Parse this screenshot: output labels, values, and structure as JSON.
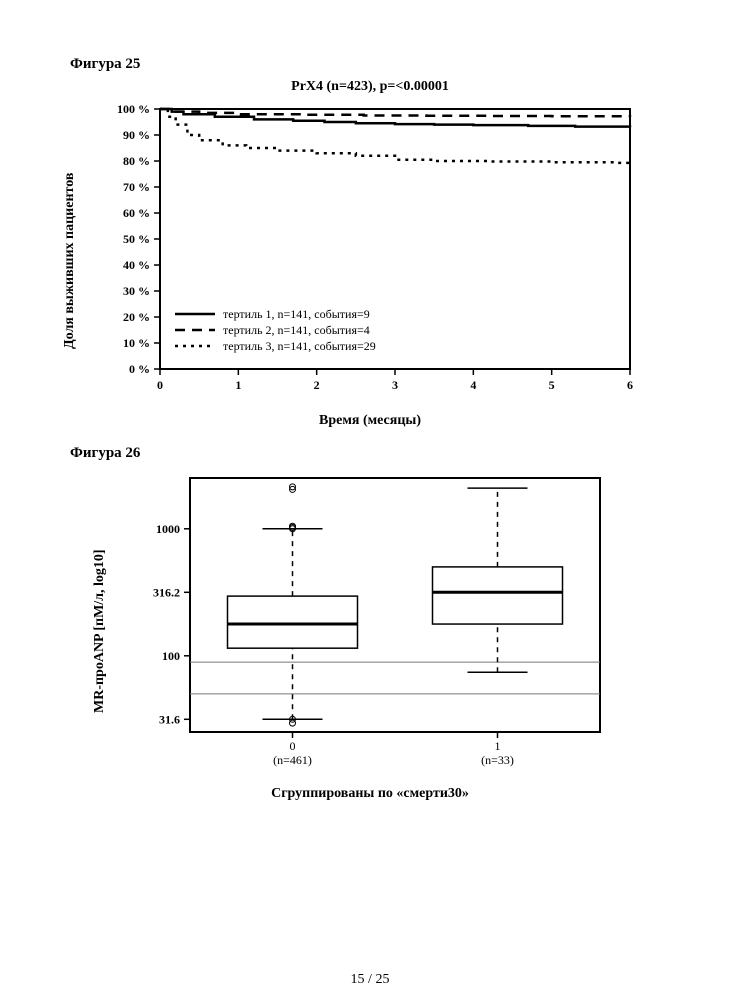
{
  "page_number": "15 / 25",
  "fig25": {
    "label": "Фигура 25",
    "title": "PrX4 (n=423), p=<0.00001",
    "type": "survival_km",
    "xlabel": "Время (месяцы)",
    "ylabel": "Доля выживших пациентов",
    "xlim": [
      0,
      6
    ],
    "ylim": [
      0,
      100
    ],
    "xticks": [
      0,
      1,
      2,
      3,
      4,
      5,
      6
    ],
    "yticks": [
      0,
      10,
      20,
      30,
      40,
      50,
      60,
      70,
      80,
      90,
      100
    ],
    "ytick_labels": [
      "0 %",
      "10 %",
      "20 %",
      "30 %",
      "40 %",
      "50 %",
      "60 %",
      "70 %",
      "80 %",
      "90 %",
      "100 %"
    ],
    "border_color": "#000000",
    "background_color": "#ffffff",
    "line_color": "#000000",
    "line_width": 2.5,
    "legend": [
      {
        "label": "тертиль 1, n=141, события=9",
        "dash": "solid"
      },
      {
        "label": "тертиль 2, n=141, события=4",
        "dash": "dashed"
      },
      {
        "label": "тертиль 3, n=141, события=29",
        "dash": "dotted"
      }
    ],
    "series": {
      "tertile1": [
        [
          0,
          100
        ],
        [
          0.15,
          99
        ],
        [
          0.3,
          98
        ],
        [
          0.7,
          97
        ],
        [
          1.2,
          96
        ],
        [
          1.7,
          95.5
        ],
        [
          2.1,
          95
        ],
        [
          2.5,
          94.5
        ],
        [
          3.0,
          94.2
        ],
        [
          3.5,
          94
        ],
        [
          4.0,
          93.8
        ],
        [
          4.7,
          93.5
        ],
        [
          5.3,
          93.2
        ],
        [
          6.0,
          93
        ]
      ],
      "tertile2": [
        [
          0,
          100
        ],
        [
          0.2,
          99
        ],
        [
          0.5,
          98.5
        ],
        [
          1.0,
          98
        ],
        [
          1.8,
          97.8
        ],
        [
          2.6,
          97.5
        ],
        [
          3.4,
          97.4
        ],
        [
          4.2,
          97.3
        ],
        [
          5.0,
          97.2
        ],
        [
          6.0,
          97
        ]
      ],
      "tertile3": [
        [
          0,
          100
        ],
        [
          0.1,
          97
        ],
        [
          0.2,
          94
        ],
        [
          0.35,
          90
        ],
        [
          0.5,
          88
        ],
        [
          0.8,
          86
        ],
        [
          1.1,
          85
        ],
        [
          1.5,
          84
        ],
        [
          2.0,
          83
        ],
        [
          2.5,
          82
        ],
        [
          3.0,
          80.5
        ],
        [
          3.5,
          80
        ],
        [
          4.2,
          79.8
        ],
        [
          5.0,
          79.5
        ],
        [
          5.8,
          79.3
        ],
        [
          6.0,
          79
        ]
      ]
    }
  },
  "fig26": {
    "label": "Фигура 26",
    "type": "boxplot",
    "xlabel": "Сгруппированы по «смерти30»",
    "ylabel": "MR-проANP [пМ/л, log10]",
    "yscale": "log",
    "ylim_log": [
      1.4,
      3.4
    ],
    "yticks_log": [
      1.5,
      2.0,
      2.5,
      3.0
    ],
    "ytick_labels": [
      "31.6",
      "100",
      "316.2",
      "1000"
    ],
    "xtick_labels": [
      "0\n(n=461)",
      "1\n(n=33)"
    ],
    "groups": [
      {
        "name": "0",
        "n": "(n=461)",
        "q1_log": 2.06,
        "median_log": 2.25,
        "q3_log": 2.47,
        "wlo_log": 1.5,
        "whi_log": 3.0,
        "outliers_log": [
          3.33,
          3.31,
          3.0,
          3.01,
          3.02,
          1.5,
          1.27,
          1.47
        ]
      },
      {
        "name": "1",
        "n": "(n=33)",
        "q1_log": 2.25,
        "median_log": 2.5,
        "q3_log": 2.7,
        "wlo_log": 1.87,
        "whi_log": 3.32,
        "outliers_log": []
      }
    ],
    "border_color": "#000000",
    "box_fill": "#ffffff",
    "ref_lines_log": [
      1.95,
      1.7
    ],
    "ref_line_color": "#777777",
    "line_color": "#000000"
  }
}
